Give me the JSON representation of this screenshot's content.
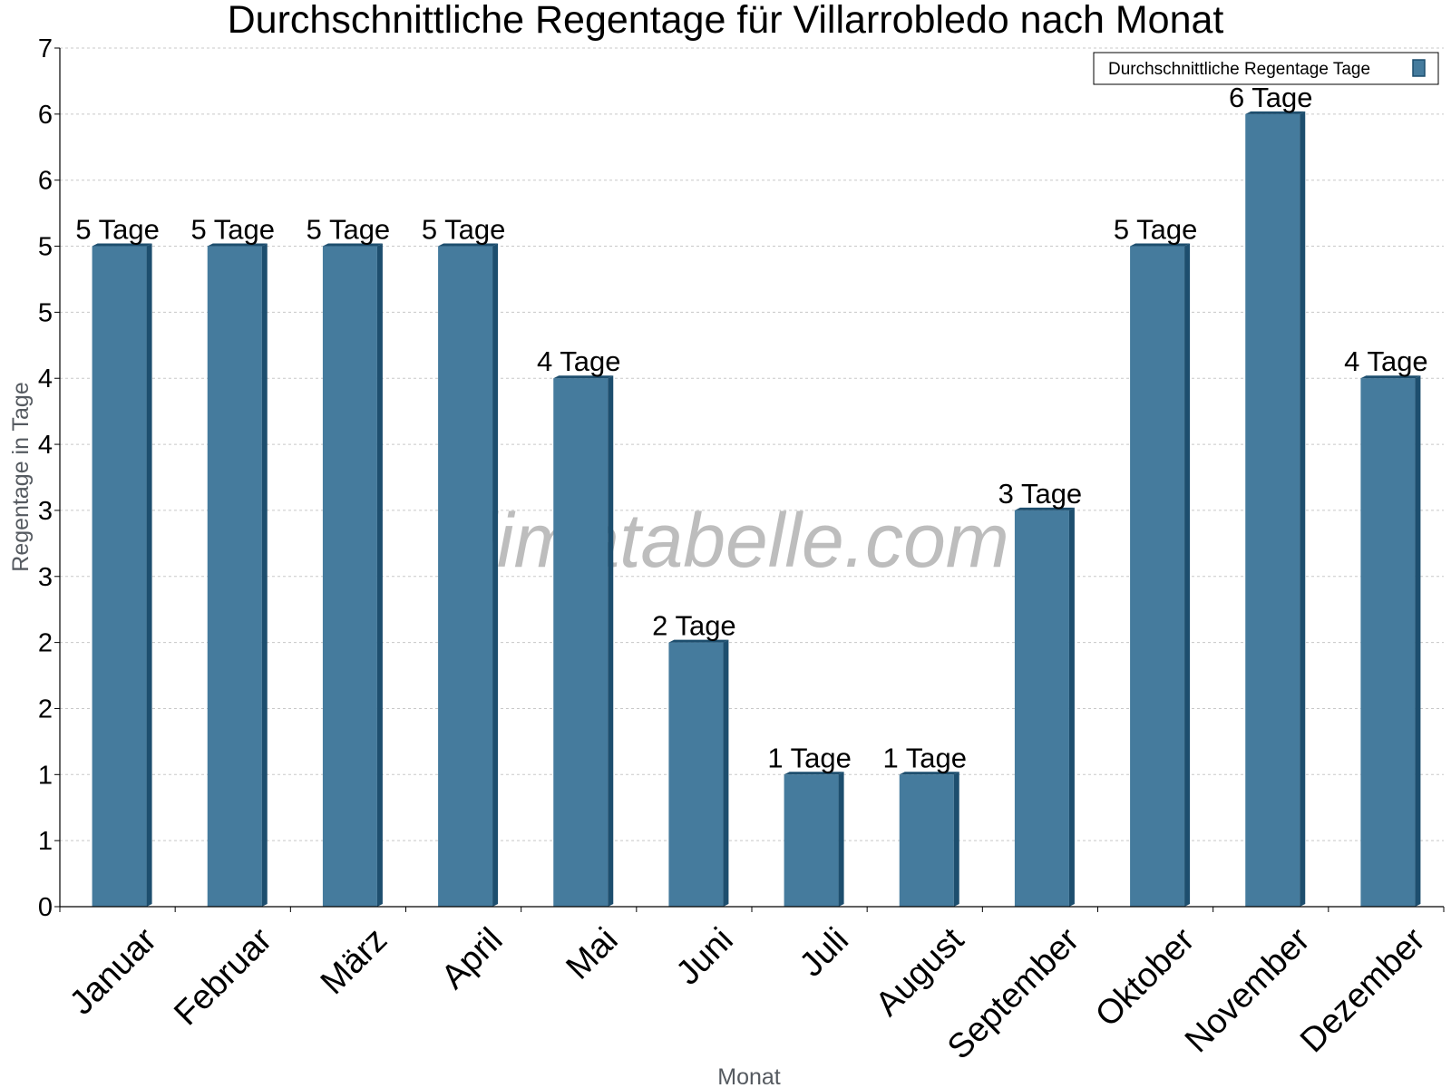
{
  "chart_data": {
    "type": "bar",
    "title": "Durchschnittliche Regentage für Villarrobledo nach Monat",
    "xlabel": "Monat",
    "ylabel": "Regentage in Tage",
    "categories": [
      "Januar",
      "Februar",
      "März",
      "April",
      "Mai",
      "Juni",
      "Juli",
      "August",
      "September",
      "Oktober",
      "November",
      "Dezember"
    ],
    "series": [
      {
        "name": "Durchschnittliche Regentage Tage",
        "values": [
          5,
          5,
          5,
          5,
          4,
          2,
          1,
          1,
          3,
          5,
          6,
          4
        ],
        "labels": [
          "5 Tage",
          "5 Tage",
          "5 Tage",
          "5 Tage",
          "4 Tage",
          "2 Tage",
          "1 Tage",
          "1 Tage",
          "3 Tage",
          "5 Tage",
          "6 Tage",
          "4 Tage"
        ]
      }
    ],
    "ylim": [
      0,
      6.5
    ],
    "yticks": [
      0,
      0.5,
      1,
      1.5,
      2,
      2.5,
      3,
      3.5,
      4,
      4.5,
      5,
      5.5,
      6,
      6.5
    ],
    "ytick_labels": [
      "0",
      "1",
      "1",
      "2",
      "2",
      "3",
      "3",
      "4",
      "4",
      "5",
      "5",
      "6",
      "6",
      "7"
    ],
    "grid": true,
    "legend_position": "top-right",
    "watermark": "klimatabelle.com",
    "colors": {
      "bar": "#457b9d",
      "bar_side": "#1d4e6e",
      "grid": "#c8c8c8",
      "axis": "#000000"
    }
  }
}
